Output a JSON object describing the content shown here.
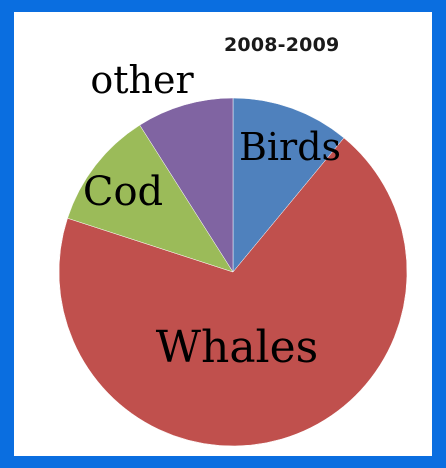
{
  "chart_data": {
    "type": "pie",
    "title": "2008-2009",
    "slices": [
      {
        "label": "Birds",
        "value": 11,
        "color": "#4f81bd"
      },
      {
        "label": "Whales",
        "value": 69,
        "color": "#c0504d"
      },
      {
        "label": "Cod",
        "value": 11,
        "color": "#9bbb59"
      },
      {
        "label": "other",
        "value": 9,
        "color": "#8064a2"
      }
    ]
  },
  "colors": {
    "frame": "#0a6ee0",
    "panel": "#ffffff"
  }
}
